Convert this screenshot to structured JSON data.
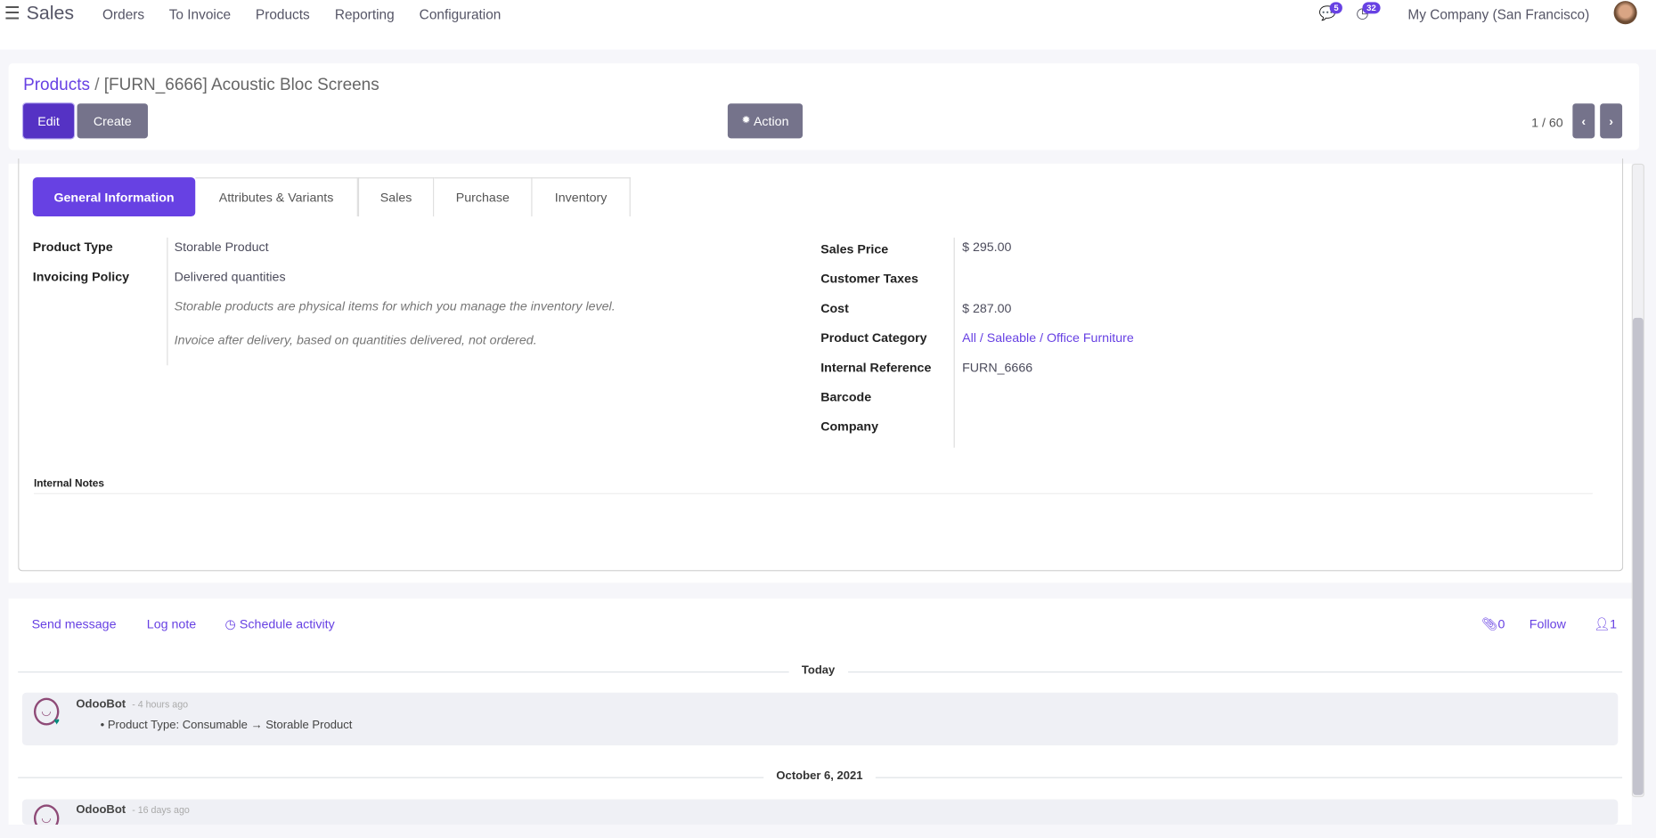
{
  "nav": {
    "app_title": "Sales",
    "menu": [
      "Orders",
      "To Invoice",
      "Products",
      "Reporting",
      "Configuration"
    ],
    "messages_count": "5",
    "activities_count": "32",
    "company": "My Company (San Francisco)"
  },
  "control": {
    "breadcrumb_parent": "Products",
    "breadcrumb_separator": "/",
    "record_title": "[FURN_6666] Acoustic Bloc Screens",
    "edit_label": "Edit",
    "create_label": "Create",
    "action_label": "Action",
    "pager": "1 / 60"
  },
  "tabs": [
    "General Information",
    "Attributes & Variants",
    "Sales",
    "Purchase",
    "Inventory"
  ],
  "active_tab": "General Information",
  "left_fields": {
    "product_type_label": "Product Type",
    "product_type_value": "Storable Product",
    "invoicing_label": "Invoicing Policy",
    "invoicing_value": "Delivered quantities",
    "help_type": "Storable products are physical items for which you manage the inventory level.",
    "help_invoice": "Invoice after delivery, based on quantities delivered, not ordered."
  },
  "right_fields": [
    {
      "label": "Sales Price",
      "value": "$ 295.00"
    },
    {
      "label": "Customer Taxes",
      "value": ""
    },
    {
      "label": "Cost",
      "value": "$ 287.00"
    },
    {
      "label": "Product Category",
      "value": "All / Saleable / Office Furniture"
    },
    {
      "label": "Internal Reference",
      "value": "FURN_6666"
    },
    {
      "label": "Barcode",
      "value": ""
    },
    {
      "label": "Company",
      "value": ""
    }
  ],
  "internal_notes_label": "Internal Notes",
  "chatter": {
    "send_message": "Send message",
    "log_note": "Log note",
    "schedule_activity": "Schedule activity",
    "attachments_count": "0",
    "follow": "Follow",
    "followers_count": "1",
    "groups": [
      {
        "date": "Today",
        "author": "OdooBot",
        "time": "- 4 hours ago",
        "change_field": "Product Type:",
        "old": "Consumable",
        "arrow": "→",
        "new": "Storable Product"
      },
      {
        "date": "October 6, 2021",
        "author": "OdooBot",
        "time": "- 16 days ago"
      }
    ]
  },
  "colors": {
    "accent": "#6741e3",
    "button_secondary": "#75738b",
    "edit_button": "#5532c4"
  }
}
